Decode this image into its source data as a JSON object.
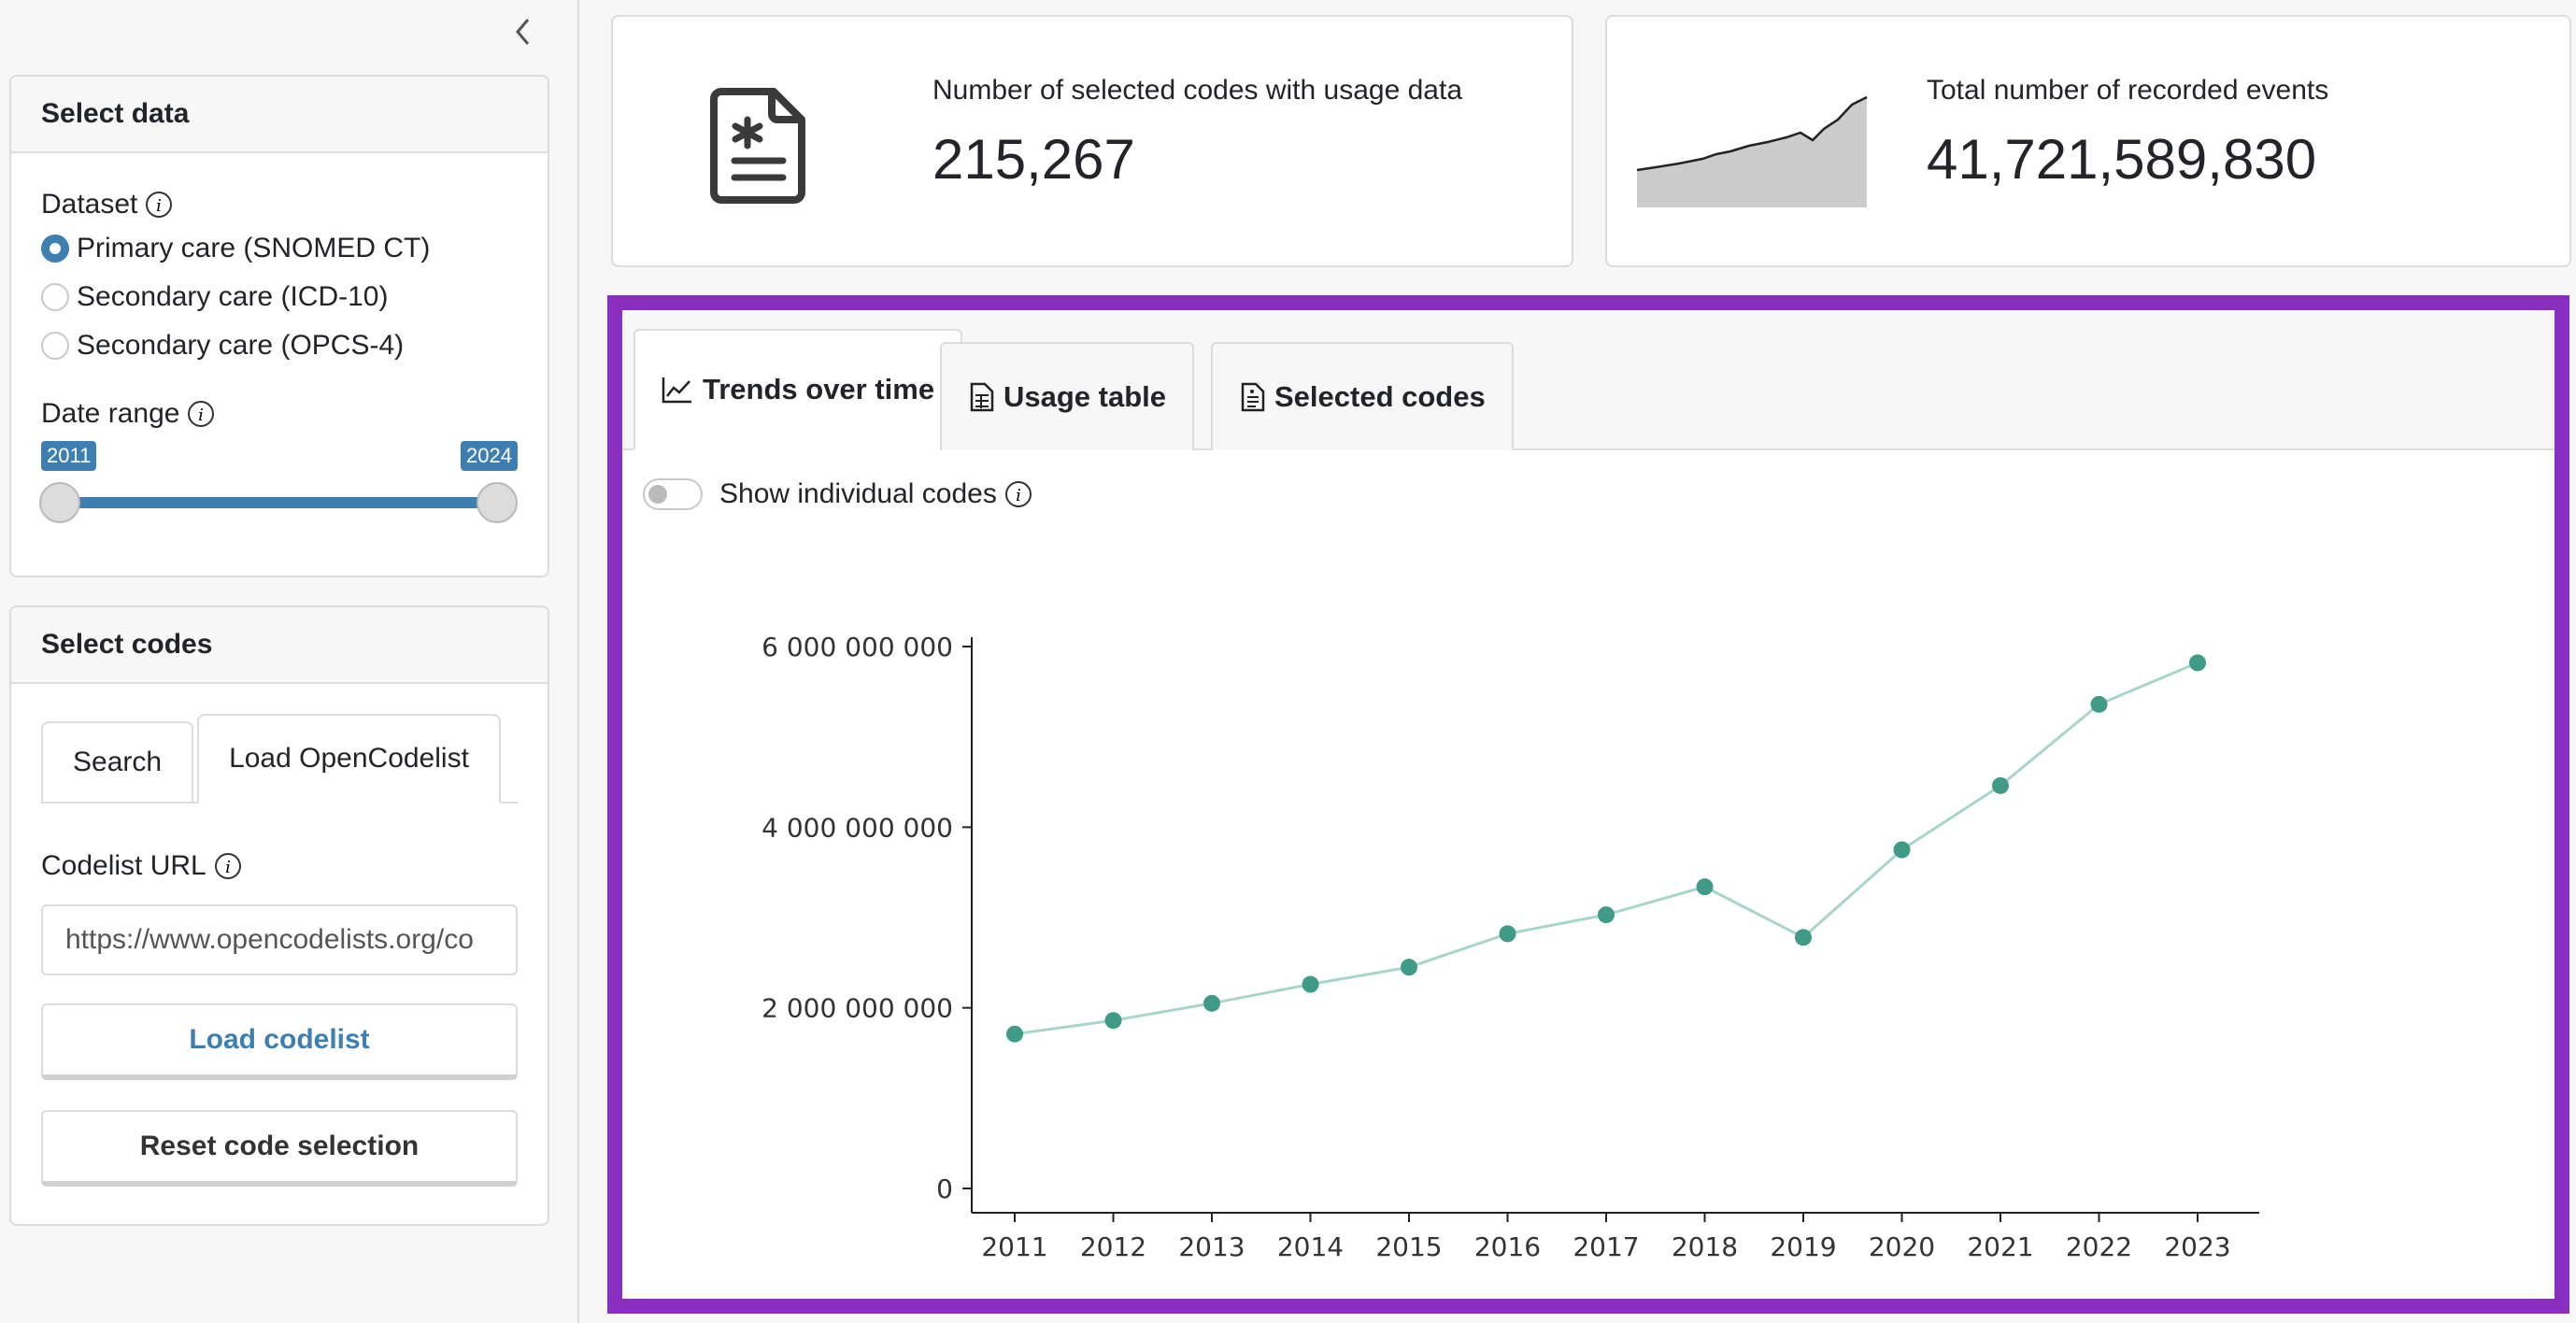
{
  "sidebar": {
    "select_data": {
      "title": "Select data",
      "dataset_label": "Dataset",
      "options": [
        {
          "label": "Primary care (SNOMED CT)",
          "checked": true
        },
        {
          "label": "Secondary care (ICD-10)",
          "checked": false
        },
        {
          "label": "Secondary care (OPCS-4)",
          "checked": false
        }
      ],
      "date_range_label": "Date range",
      "date_range": {
        "min": "2011",
        "max": "2024",
        "from": "2011",
        "to": "2024"
      }
    },
    "select_codes": {
      "title": "Select codes",
      "tabs": [
        {
          "label": "Search",
          "active": false
        },
        {
          "label": "Load OpenCodelist",
          "active": true
        }
      ],
      "codelist_url_label": "Codelist URL",
      "codelist_url_value": "https://www.opencodelists.org/co",
      "load_button": "Load codelist",
      "reset_button": "Reset code selection"
    }
  },
  "value_boxes": [
    {
      "title": "Number of selected codes with usage data",
      "value": "215,267",
      "icon": "file-medical-icon"
    },
    {
      "title": "Total number of recorded events",
      "value": "41,721,589,830",
      "icon": "sparkline-area-icon"
    }
  ],
  "main_tabs": [
    {
      "label": "Trends over time",
      "icon": "line-chart-icon",
      "active": true
    },
    {
      "label": "Usage table",
      "icon": "table-icon",
      "active": false
    },
    {
      "label": "Selected codes",
      "icon": "file-text-icon",
      "active": false
    }
  ],
  "toggle": {
    "label": "Show individual codes",
    "on": false
  },
  "colors": {
    "accent": "#3e7fb1",
    "panel_border": "#8a2ebf",
    "point": "#3f9b87",
    "line": "#a8d5c9"
  },
  "chart_data": {
    "type": "line",
    "title": "",
    "xlabel": "",
    "ylabel": "",
    "x": [
      2011,
      2012,
      2013,
      2014,
      2015,
      2016,
      2017,
      2018,
      2019,
      2020,
      2021,
      2022,
      2023
    ],
    "values": [
      1710000000,
      1860000000,
      2050000000,
      2260000000,
      2450000000,
      2820000000,
      3030000000,
      3340000000,
      2780000000,
      3750000000,
      4460000000,
      5360000000,
      5820000000
    ],
    "ylim": [
      0,
      6000000000
    ],
    "yticks": [
      0,
      2000000000,
      4000000000,
      6000000000
    ],
    "ytick_labels": [
      "0",
      "2 000 000 000",
      "4 000 000 000",
      "6 000 000 000"
    ],
    "xtick_labels": [
      "2011",
      "2012",
      "2013",
      "2014",
      "2015",
      "2016",
      "2017",
      "2018",
      "2019",
      "2020",
      "2021",
      "2022",
      "2023"
    ],
    "grid": false,
    "legend": "none"
  }
}
